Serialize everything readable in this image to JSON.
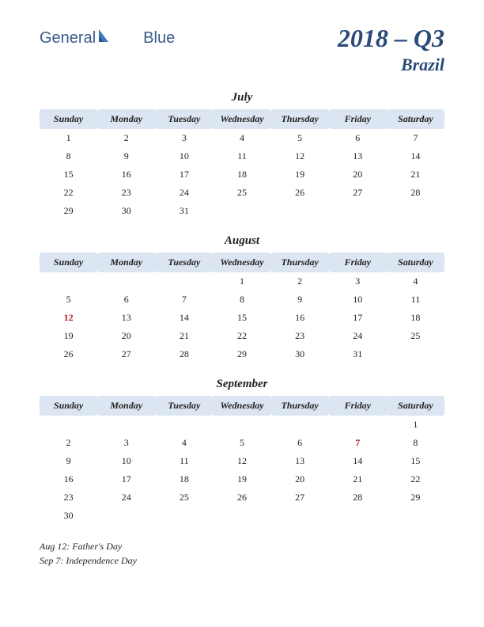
{
  "logo": {
    "text_general": "General",
    "text_blue": "Blue"
  },
  "header": {
    "period": "2018 – Q3",
    "country": "Brazil"
  },
  "colors": {
    "header_bg": "#dce5f2",
    "title_color": "#2a4a7a",
    "holiday_color": "#b02020",
    "logo_color": "#3a5a8a"
  },
  "day_headers": [
    "Sunday",
    "Monday",
    "Tuesday",
    "Wednesday",
    "Thursday",
    "Friday",
    "Saturday"
  ],
  "months": [
    {
      "name": "July",
      "weeks": [
        [
          "1",
          "2",
          "3",
          "4",
          "5",
          "6",
          "7"
        ],
        [
          "8",
          "9",
          "10",
          "11",
          "12",
          "13",
          "14"
        ],
        [
          "15",
          "16",
          "17",
          "18",
          "19",
          "20",
          "21"
        ],
        [
          "22",
          "23",
          "24",
          "25",
          "26",
          "27",
          "28"
        ],
        [
          "29",
          "30",
          "31",
          "",
          "",
          "",
          ""
        ]
      ],
      "holidays": []
    },
    {
      "name": "August",
      "weeks": [
        [
          "",
          "",
          "",
          "1",
          "2",
          "3",
          "4"
        ],
        [
          "5",
          "6",
          "7",
          "8",
          "9",
          "10",
          "11"
        ],
        [
          "12",
          "13",
          "14",
          "15",
          "16",
          "17",
          "18"
        ],
        [
          "19",
          "20",
          "21",
          "22",
          "23",
          "24",
          "25"
        ],
        [
          "26",
          "27",
          "28",
          "29",
          "30",
          "31",
          ""
        ]
      ],
      "holidays": [
        "12"
      ]
    },
    {
      "name": "September",
      "weeks": [
        [
          "",
          "",
          "",
          "",
          "",
          "",
          "1"
        ],
        [
          "2",
          "3",
          "4",
          "5",
          "6",
          "7",
          "8"
        ],
        [
          "9",
          "10",
          "11",
          "12",
          "13",
          "14",
          "15"
        ],
        [
          "16",
          "17",
          "18",
          "19",
          "20",
          "21",
          "22"
        ],
        [
          "23",
          "24",
          "25",
          "26",
          "27",
          "28",
          "29"
        ],
        [
          "30",
          "",
          "",
          "",
          "",
          "",
          ""
        ]
      ],
      "holidays": [
        "7"
      ]
    }
  ],
  "holiday_notes": [
    "Aug 12: Father's Day",
    "Sep 7: Independence Day"
  ]
}
